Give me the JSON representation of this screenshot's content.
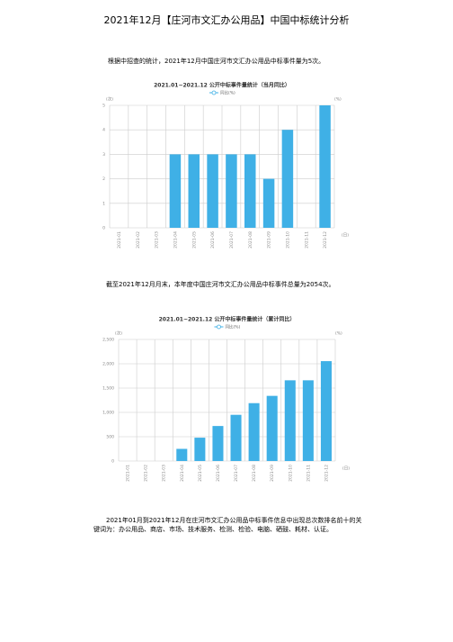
{
  "title": "2021年12月【庄河市文汇办公用品】中国中标统计分析",
  "paragraphs": [
    "根据中招查的统计，2021年12月中国庄河市文汇办公用品中标事件量为5次。",
    "截至2021年12月月末，本年度中国庄河市文汇办公用品中标事件总量为2054次。",
    "2021年01月到2021年12月在庄河市文汇办公用品中标事件信息中出现总次数排名前十的关键词为：办公用品、商店、市场、技术服务、检测、检验、电脑、硒鼓、耗材、认证。"
  ],
  "chart_data": [
    {
      "type": "bar",
      "title": "2021.01~2021.12 公开中标事件量统计（当月同比）",
      "legend_label": "同比(%)",
      "y_label": "(次)",
      "y2_label": "(%)",
      "x_label": "(日)",
      "categories": [
        "2021-01",
        "2021-02",
        "2021-03",
        "2021-04",
        "2021-05",
        "2021-06",
        "2021-07",
        "2021-08",
        "2021-09",
        "2021-10",
        "2021-11",
        "2021-12"
      ],
      "values": [
        0,
        0,
        0,
        3,
        3,
        3,
        3,
        3,
        2,
        4,
        0,
        5
      ],
      "color": "#3fb0e6",
      "ylim": [
        0,
        5
      ],
      "yticks": [
        0,
        1,
        2,
        3,
        4,
        5
      ],
      "grid": true
    },
    {
      "type": "bar",
      "title": "2021.01~2021.12 公开中标事件量统计（累计同比）",
      "legend_label": "同比(%)",
      "y_label": "(次)",
      "y2_label": "(%)",
      "x_label": "(日)",
      "categories": [
        "2021-01",
        "2021-02",
        "2021-03",
        "2021-04",
        "2021-05",
        "2021-06",
        "2021-07",
        "2021-08",
        "2021-09",
        "2021-10",
        "2021-11",
        "2021-12"
      ],
      "values": [
        0,
        0,
        0,
        250,
        480,
        720,
        950,
        1190,
        1340,
        1660,
        1660,
        2054
      ],
      "color": "#3fb0e6",
      "ylim": [
        0,
        2500
      ],
      "yticks": [
        0,
        500,
        {
          "value": 1000,
          "label": "1,000"
        },
        {
          "value": 1500,
          "label": "1,500"
        },
        {
          "value": 2000,
          "label": "2,000"
        },
        {
          "value": 2500,
          "label": "2,500"
        }
      ],
      "grid": true
    }
  ]
}
